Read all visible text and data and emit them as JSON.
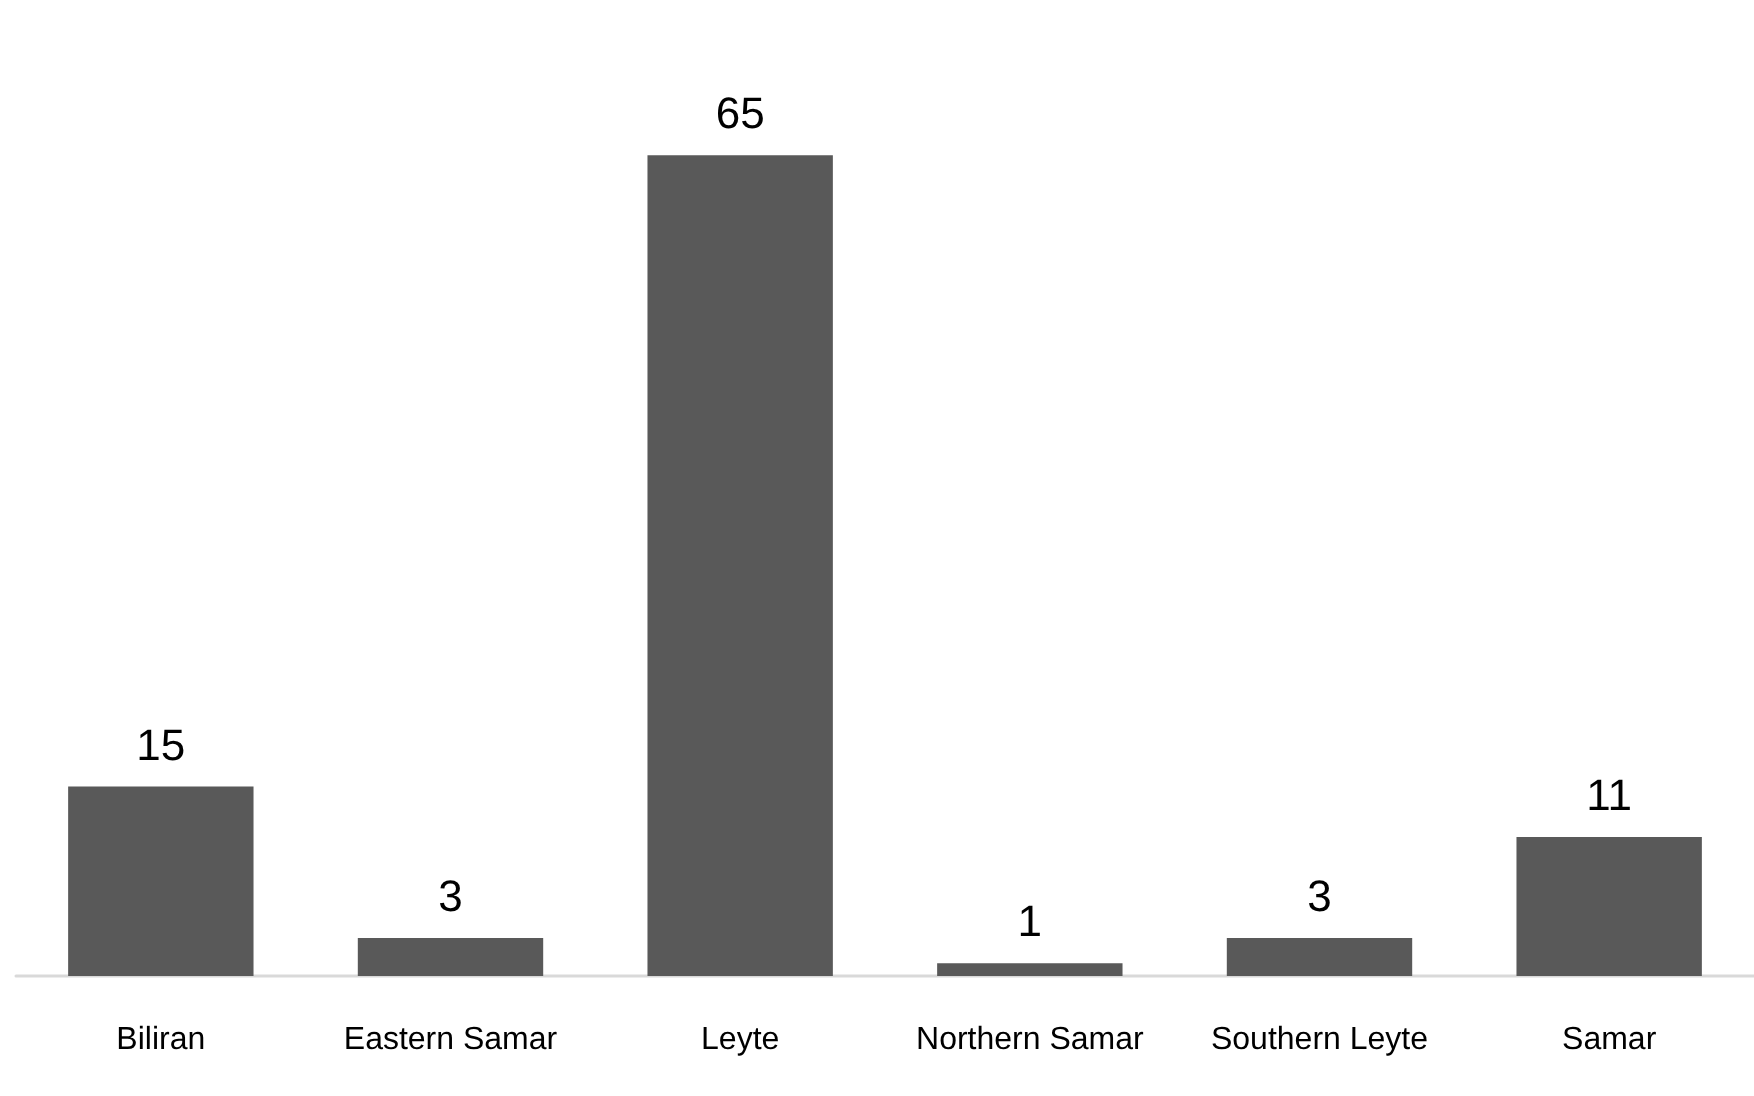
{
  "chart_data": {
    "type": "bar",
    "categories": [
      "Biliran",
      "Eastern Samar",
      "Leyte",
      "Northern Samar",
      "Southern Leyte",
      "Samar"
    ],
    "values": [
      15,
      3,
      65,
      1,
      3,
      11
    ],
    "color": "#595959",
    "data_labels": true
  }
}
